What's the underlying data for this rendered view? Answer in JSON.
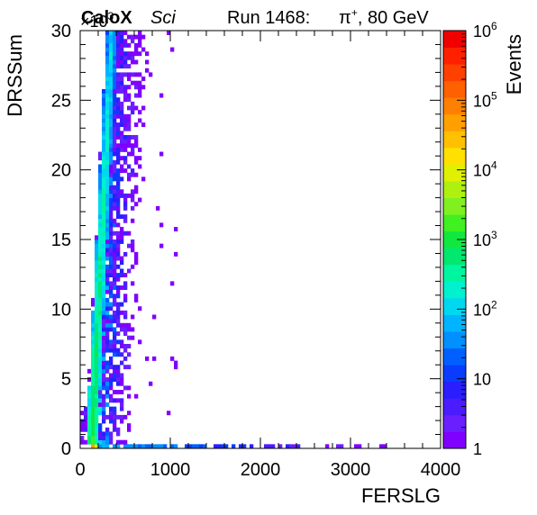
{
  "header": {
    "experiment": "CaloX",
    "tag": "Sci",
    "run_text": "Run 1468:",
    "beam_particle": "π",
    "beam_charge": "+",
    "beam_energy_text": ", 80 GeV",
    "exponent_base": "×10",
    "exponent_power": "3"
  },
  "chart_data": {
    "type": "heatmap",
    "xlabel": "FERSLG",
    "ylabel": "DRSSum",
    "xlim": [
      0,
      4000
    ],
    "ylim": [
      0,
      30
    ],
    "y_scale_factor": "×10^3",
    "x_ticks": [
      "0",
      "1000",
      "2000",
      "3000",
      "4000"
    ],
    "y_ticks": [
      "0",
      "5",
      "10",
      "15",
      "20",
      "25",
      "30"
    ],
    "colorbar": {
      "label": "Events",
      "scale": "log",
      "range": [
        1,
        1000000
      ],
      "tick_labels": [
        {
          "base": "1",
          "exp": ""
        },
        {
          "base": "10",
          "exp": ""
        },
        {
          "base": "10",
          "exp": "2"
        },
        {
          "base": "10",
          "exp": "3"
        },
        {
          "base": "10",
          "exp": "4"
        },
        {
          "base": "10",
          "exp": "5"
        },
        {
          "base": "10",
          "exp": "6"
        }
      ],
      "palette": [
        "#7f00ff",
        "#6a1fff",
        "#4b1cff",
        "#2a1eff",
        "#0a3cff",
        "#0060ff",
        "#0090ff",
        "#00b4ff",
        "#00d8f0",
        "#00f0d0",
        "#00f5a0",
        "#00e870",
        "#10e840",
        "#40f020",
        "#80f020",
        "#b0f010",
        "#e0f000",
        "#ffe000",
        "#ffc000",
        "#ffa000",
        "#ff8000",
        "#ff6000",
        "#ff4000",
        "#ff2000",
        "#f00000"
      ]
    },
    "bands": [
      {
        "name": "main",
        "x_start": 100,
        "x_end": 50,
        "y_start": 0.3,
        "y_end": 30,
        "slope_x_per_y": 0,
        "ridge": [
          [
            130,
            0.4
          ],
          [
            350,
            29.8
          ]
        ],
        "log_peak_top": 2.1,
        "log_peak_bottom": 3.2,
        "core_halfwidth": 60,
        "tail_halfwidth": 420
      },
      {
        "name": "low_y_line",
        "x_from": 100,
        "x_to": 3400,
        "y_from": 0.0,
        "y_to": 0.6
      },
      {
        "name": "left_edge",
        "x_from": 50,
        "x_to": 110,
        "y_from": 0.3,
        "y_to": 3.0
      }
    ]
  }
}
